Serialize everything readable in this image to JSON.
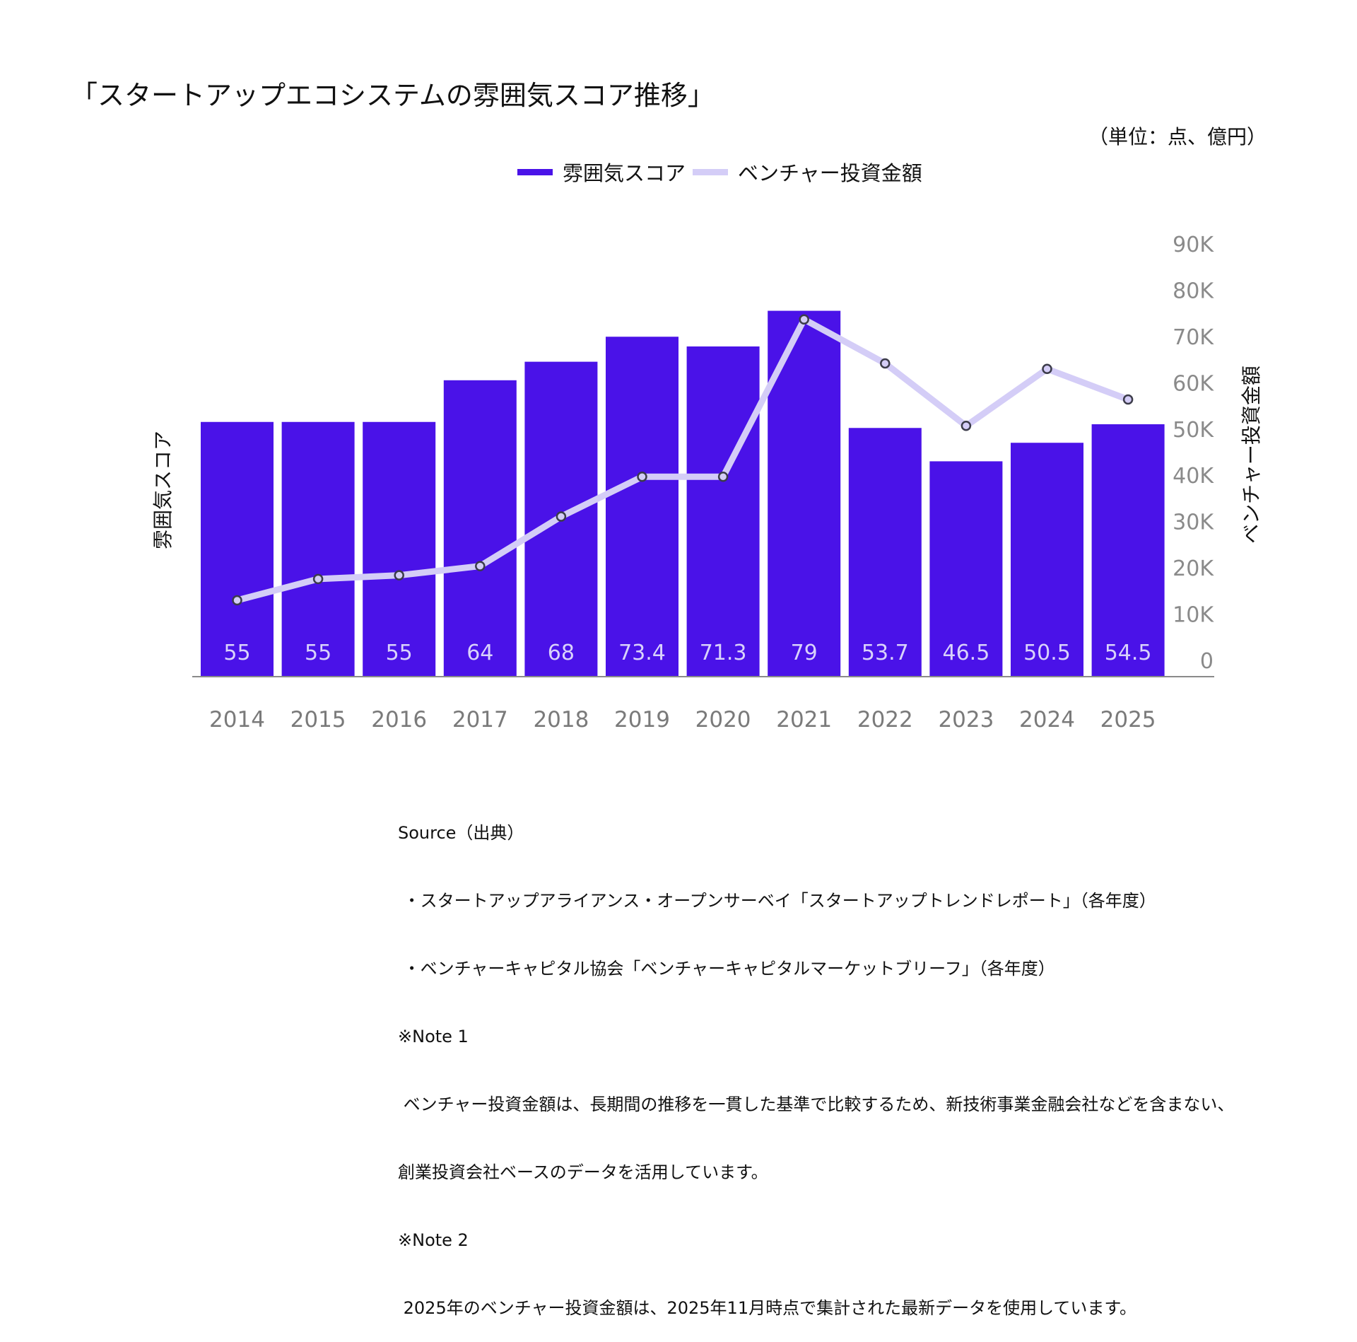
{
  "title": "「スタートアップエコシステムの雰囲気スコア推移」",
  "unit_label": "（単位：点、億円）",
  "chart_data": {
    "type": "bar+line",
    "title": "「スタートアップエコシステムの雰囲気スコア推移」",
    "categories": [
      "2014",
      "2015",
      "2016",
      "2017",
      "2018",
      "2019",
      "2020",
      "2021",
      "2022",
      "2023",
      "2024",
      "2025"
    ],
    "series": [
      {
        "name": "雰囲気スコア",
        "type": "bar",
        "axis": "left",
        "color": "#4a12e8",
        "values": [
          55,
          55,
          55,
          64,
          68,
          73.4,
          71.3,
          79,
          53.7,
          46.5,
          50.5,
          54.5
        ],
        "data_labels": [
          "55",
          "55",
          "55",
          "64",
          "68",
          "73.4",
          "71.3",
          "79",
          "53.7",
          "46.5",
          "50.5",
          "54.5"
        ]
      },
      {
        "name": "ベンチャー投資金額",
        "type": "line",
        "axis": "right",
        "color": "#d4cdf7",
        "values": [
          16500,
          21100,
          21900,
          23900,
          34600,
          43200,
          43200,
          77200,
          67700,
          54200,
          66500,
          59900
        ]
      }
    ],
    "ylabel_left": "雰囲気スコア",
    "ylabel_right": "ベンチャー投資金額",
    "ylim_left": [
      0,
      100
    ],
    "ylim_right": [
      0,
      90000
    ],
    "right_ticks": [
      "0",
      "10K",
      "20K",
      "30K",
      "40K",
      "50K",
      "60K",
      "70K",
      "80K",
      "90K"
    ],
    "right_tick_values": [
      0,
      10000,
      20000,
      30000,
      40000,
      50000,
      60000,
      70000,
      80000,
      90000
    ],
    "grid": false,
    "legend": {
      "placement": "top-center",
      "entries": [
        "雰囲気スコア",
        "ベンチャー投資金額"
      ]
    }
  },
  "source": {
    "heading": "Source（出典）",
    "lines": [
      " ・スタートアップアライアンス・オープンサーベイ「スタートアップトレンドレポート」（各年度）",
      " ・ベンチャーキャピタル協会「ベンチャーキャピタルマーケットブリーフ」（各年度）"
    ],
    "note1_heading": "※Note 1",
    "note1_lines": [
      " ベンチャー投資金額は、長期間の推移を一貫した基準で比較するため、新技術事業金融会社などを含まない、",
      "創業投資会社ベースのデータを活用しています。"
    ],
    "note2_heading": "※Note 2",
    "note2_lines": [
      " 2025年のベンチャー投資金額は、2025年11月時点で集計された最新データを使用しています。"
    ]
  }
}
